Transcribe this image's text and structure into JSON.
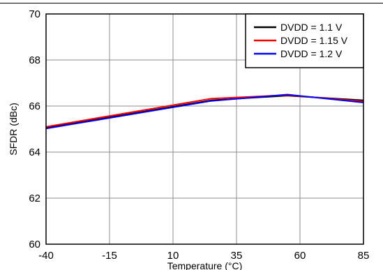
{
  "chart_data": {
    "type": "line",
    "xlabel": "Temperature (°C)",
    "ylabel": "SFDR (dBc)",
    "xlim": [
      -40,
      85
    ],
    "ylim": [
      60,
      70
    ],
    "xticks": [
      "-40",
      "-15",
      "10",
      "35",
      "60",
      "85"
    ],
    "yticks": [
      "60",
      "62",
      "64",
      "66",
      "68",
      "70"
    ],
    "grid": true,
    "legend_position": "top-right",
    "x": [
      -40,
      25,
      55,
      85
    ],
    "series": [
      {
        "name": "DVDD = 1.1 V",
        "color": "#000000",
        "values": [
          65.05,
          66.25,
          66.45,
          66.25
        ]
      },
      {
        "name": "DVDD = 1.15 V",
        "color": "#ff0000",
        "values": [
          65.1,
          66.32,
          66.48,
          66.2
        ]
      },
      {
        "name": "DVDD = 1.2 V",
        "color": "#0000ff",
        "values": [
          65.02,
          66.22,
          66.5,
          66.15
        ]
      }
    ]
  }
}
